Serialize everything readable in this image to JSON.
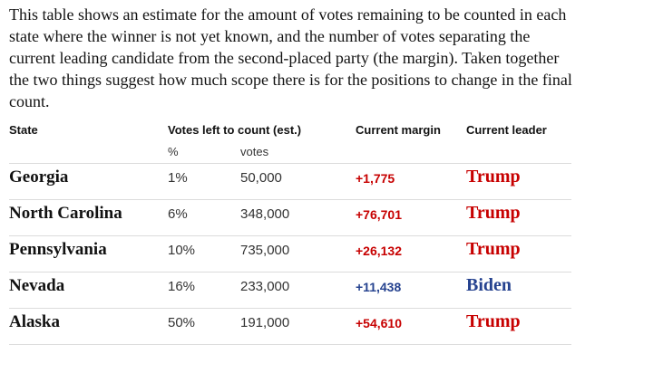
{
  "intro": "This table shows an estimate for the amount of votes remaining to be counted in each state where the winner is not yet known, and the number of votes separating the current leading candidate from the second-placed party (the margin). Taken together the two things suggest how much scope there is for the positions to change in the final count.",
  "table": {
    "headers": [
      "State",
      "Votes left to count (est.)",
      "Current margin",
      "Current leader"
    ],
    "subheaders": [
      "%",
      "votes"
    ],
    "rows": [
      {
        "state": "Georgia",
        "pct": "1%",
        "votes": "50,000",
        "margin": "+1,775",
        "leader": "Trump",
        "color": "#c70000"
      },
      {
        "state": "North Carolina",
        "pct": "6%",
        "votes": "348,000",
        "margin": "+76,701",
        "leader": "Trump",
        "color": "#c70000"
      },
      {
        "state": "Pennsylvania",
        "pct": "10%",
        "votes": "735,000",
        "margin": "+26,132",
        "leader": "Trump",
        "color": "#c70000"
      },
      {
        "state": "Nevada",
        "pct": "16%",
        "votes": "233,000",
        "margin": "+11,438",
        "leader": "Biden",
        "color": "#25428f"
      },
      {
        "state": "Alaska",
        "pct": "50%",
        "votes": "191,000",
        "margin": "+54,610",
        "leader": "Trump",
        "color": "#c70000"
      }
    ]
  }
}
